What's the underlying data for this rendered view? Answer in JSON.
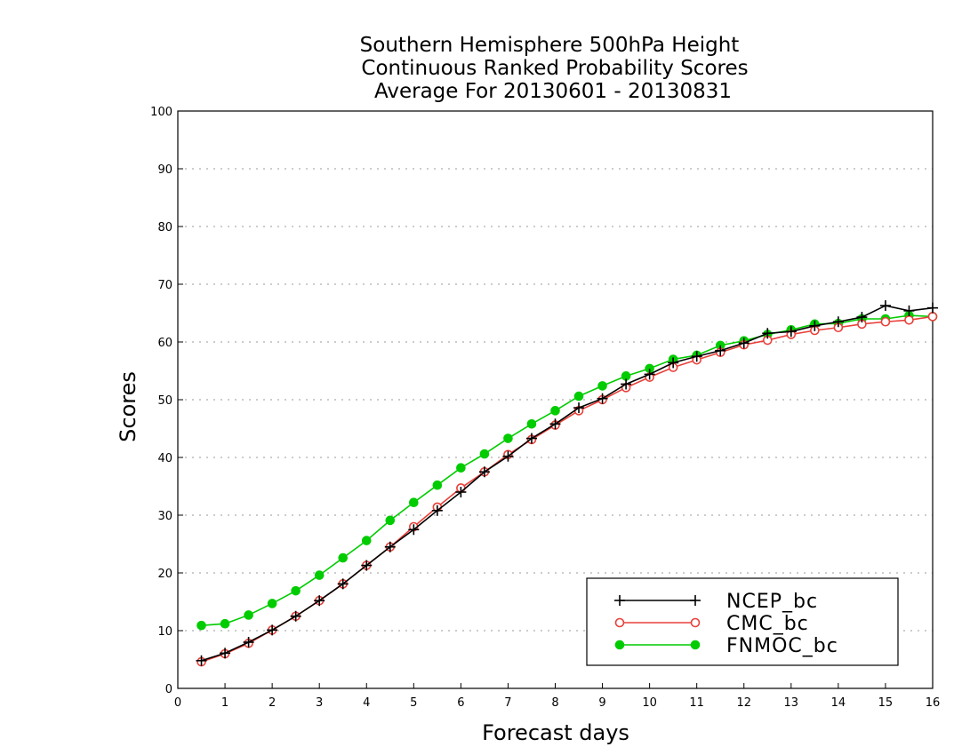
{
  "chart_data": {
    "type": "line",
    "title": [
      "Southern Hemisphere 500hPa Height",
      "Continuous Ranked Probability Scores",
      "Average For 20130601 - 20130831"
    ],
    "xlabel": "Forecast days",
    "ylabel": "Scores",
    "xlim": [
      0,
      16
    ],
    "ylim": [
      0,
      100
    ],
    "xticks": [
      0,
      1,
      2,
      3,
      4,
      5,
      6,
      7,
      8,
      9,
      10,
      11,
      12,
      13,
      14,
      15,
      16
    ],
    "yticks": [
      0,
      10,
      20,
      30,
      40,
      50,
      60,
      70,
      80,
      90,
      100
    ],
    "grid": "horizontal dotted",
    "legend_position": "bottom-right",
    "x": [
      0.5,
      1,
      1.5,
      2,
      2.5,
      3,
      3.5,
      4,
      4.5,
      5,
      5.5,
      6,
      6.5,
      7,
      7.5,
      8,
      8.5,
      9,
      9.5,
      10,
      10.5,
      11,
      11.5,
      12,
      12.5,
      13,
      13.5,
      14,
      14.5,
      15,
      15.5,
      16
    ],
    "series": [
      {
        "name": "NCEP_bc",
        "color": "#000000",
        "marker": "plus",
        "values": [
          4.8,
          6.1,
          8.0,
          10.1,
          12.5,
          15.2,
          18.1,
          21.3,
          24.5,
          27.5,
          30.8,
          34.0,
          37.5,
          40.2,
          43.3,
          45.8,
          48.6,
          50.2,
          52.7,
          54.4,
          56.4,
          57.5,
          58.5,
          59.8,
          61.5,
          61.8,
          62.8,
          63.5,
          64.3,
          66.3,
          65.4,
          65.9
        ]
      },
      {
        "name": "CMC_bc",
        "color": "#e8403a",
        "marker": "open-circle",
        "values": [
          4.6,
          6.0,
          7.8,
          10.1,
          12.5,
          15.2,
          18.1,
          21.3,
          24.5,
          28.0,
          31.4,
          34.7,
          37.5,
          40.5,
          43.1,
          45.6,
          48.1,
          50.0,
          52.1,
          53.9,
          55.6,
          56.9,
          58.2,
          59.5,
          60.3,
          61.3,
          62.0,
          62.5,
          63.1,
          63.5,
          63.8,
          64.4
        ]
      },
      {
        "name": "FNMOC_bc",
        "color": "#00cc00",
        "marker": "filled-circle",
        "values": [
          10.9,
          11.2,
          12.7,
          14.7,
          16.9,
          19.6,
          22.6,
          25.6,
          29.1,
          32.2,
          35.2,
          38.2,
          40.6,
          43.3,
          45.8,
          48.1,
          50.6,
          52.4,
          54.1,
          55.4,
          57.0,
          57.7,
          59.4,
          60.2,
          61.3,
          62.1,
          63.1,
          63.2,
          64.0,
          64.0,
          64.6,
          64.4
        ]
      }
    ]
  }
}
